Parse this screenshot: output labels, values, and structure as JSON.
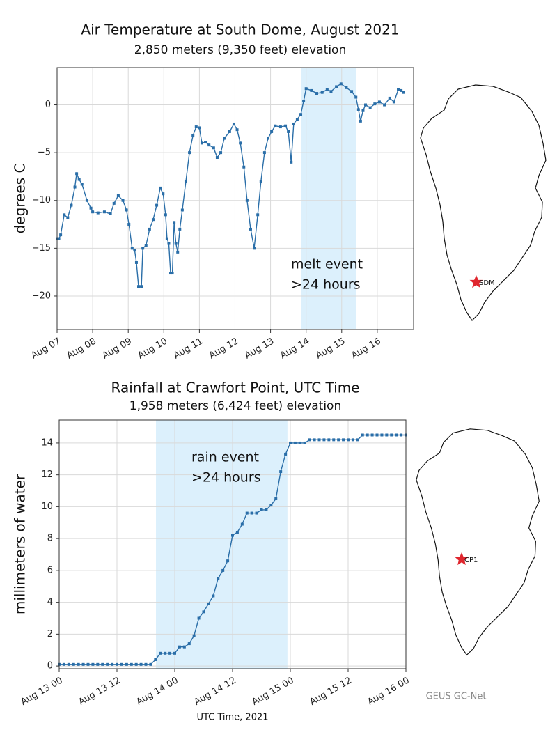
{
  "chart_data": [
    {
      "type": "line",
      "title": "Air Temperature at South Dome, August 2021",
      "subtitle": "2,850 meters (9,350 feet) elevation",
      "y_label": "degrees C",
      "annotation": [
        "melt event",
        ">24 hours"
      ],
      "span": [
        13.85,
        15.4
      ],
      "span_color": "#dcf0fc",
      "grid": true,
      "xlim": [
        7,
        17.02
      ],
      "ylim": [
        -23.5,
        3.9
      ],
      "xticks": [
        {
          "value": 7,
          "label": "Aug 07"
        },
        {
          "value": 8,
          "label": "Aug 08"
        },
        {
          "value": 9,
          "label": "Aug 09"
        },
        {
          "value": 10,
          "label": "Aug 10"
        },
        {
          "value": 11,
          "label": "Aug 11"
        },
        {
          "value": 12,
          "label": "Aug 12"
        },
        {
          "value": 13,
          "label": "Aug 13"
        },
        {
          "value": 14,
          "label": "Aug 14"
        },
        {
          "value": 15,
          "label": "Aug 15"
        },
        {
          "value": 16,
          "label": "Aug 16"
        }
      ],
      "yticks": [
        0,
        {
          "value": -5,
          "label": "−5"
        },
        {
          "value": -10,
          "label": "−10"
        },
        {
          "value": -15,
          "label": "−15"
        },
        {
          "value": -20,
          "label": "−20"
        }
      ],
      "series": [
        {
          "color": "#2a6ea8",
          "x": [
            7.0,
            7.05,
            7.1,
            7.2,
            7.3,
            7.4,
            7.5,
            7.55,
            7.62,
            7.7,
            7.84,
            7.95,
            8.0,
            8.15,
            8.33,
            8.5,
            8.6,
            8.72,
            8.85,
            8.95,
            9.02,
            9.11,
            9.18,
            9.23,
            9.29,
            9.37,
            9.41,
            9.5,
            9.6,
            9.7,
            9.8,
            9.9,
            9.98,
            10.05,
            10.09,
            10.14,
            10.19,
            10.24,
            10.29,
            10.34,
            10.39,
            10.45,
            10.52,
            10.62,
            10.72,
            10.82,
            10.91,
            11.0,
            11.07,
            11.17,
            11.27,
            11.4,
            11.5,
            11.6,
            11.7,
            11.85,
            11.97,
            12.06,
            12.15,
            12.25,
            12.34,
            12.44,
            12.54,
            12.64,
            12.73,
            12.83,
            12.93,
            13.03,
            13.13,
            13.28,
            13.42,
            13.5,
            13.58,
            13.65,
            13.75,
            13.85,
            13.93,
            14.0,
            14.15,
            14.3,
            14.45,
            14.59,
            14.7,
            14.85,
            14.98,
            15.13,
            15.28,
            15.4,
            15.47,
            15.53,
            15.6,
            15.67,
            15.8,
            15.93,
            16.06,
            16.2,
            16.35,
            16.47,
            16.59,
            16.67,
            16.74
          ],
          "values": [
            -14,
            -14,
            -13.6,
            -11.5,
            -11.8,
            -10.5,
            -8.6,
            -7.2,
            -7.8,
            -8.3,
            -10,
            -10.8,
            -11.2,
            -11.3,
            -11.2,
            -11.4,
            -10.3,
            -9.5,
            -10,
            -11,
            -12.5,
            -15,
            -15.2,
            -16.5,
            -19,
            -19,
            -15,
            -14.7,
            -13,
            -12,
            -10.5,
            -8.7,
            -9.3,
            -11.5,
            -14,
            -14.5,
            -17.6,
            -17.6,
            -12.3,
            -14.5,
            -15.4,
            -13,
            -11,
            -8,
            -5,
            -3.2,
            -2.3,
            -2.4,
            -4,
            -3.9,
            -4.2,
            -4.5,
            -5.5,
            -5,
            -3.5,
            -2.8,
            -2,
            -2.6,
            -4,
            -6.5,
            -10,
            -13,
            -15,
            -11.5,
            -8,
            -5,
            -3.5,
            -2.8,
            -2.2,
            -2.3,
            -2.2,
            -2.8,
            -6,
            -2,
            -1.5,
            -1,
            0.4,
            1.7,
            1.5,
            1.2,
            1.3,
            1.6,
            1.4,
            1.9,
            2.2,
            1.8,
            1.4,
            0.8,
            -0.5,
            -1.7,
            -0.6,
            0,
            -0.3,
            0.1,
            0.3,
            0,
            0.7,
            0.3,
            1.6,
            1.5,
            1.3
          ]
        }
      ]
    },
    {
      "type": "line",
      "title": "Rainfall at Crawfort Point, UTC Time",
      "subtitle": "1,958 meters (6,424 feet) elevation",
      "y_label": "millimeters of water",
      "x_label": "UTC Time, 2021",
      "annotation": [
        "rain event",
        ">24 hours"
      ],
      "span": [
        20.1,
        47.4
      ],
      "span_color": "#dcf0fc",
      "grid": true,
      "xlim": [
        0,
        72
      ],
      "ylim": [
        -0.17,
        15.44
      ],
      "xticks": [
        {
          "value": 0,
          "label": "Aug 13 00"
        },
        {
          "value": 12,
          "label": "Aug 13 12"
        },
        {
          "value": 24,
          "label": "Aug 14 00"
        },
        {
          "value": 36,
          "label": "Aug 14 12"
        },
        {
          "value": 48,
          "label": "Aug 15 00"
        },
        {
          "value": 60,
          "label": "Aug 15 12"
        },
        {
          "value": 72,
          "label": "Aug 16 00"
        }
      ],
      "yticks": [
        0,
        2,
        4,
        6,
        8,
        10,
        12,
        14
      ],
      "series": [
        {
          "color": "#2a6ea8",
          "x": [
            0,
            1,
            2,
            3,
            4,
            5,
            6,
            7,
            8,
            9,
            10,
            11,
            12,
            13,
            14,
            15,
            16,
            17,
            18,
            19,
            20,
            21,
            22,
            23,
            24,
            25,
            26,
            27,
            28,
            29,
            30,
            31,
            32,
            33,
            34,
            35,
            36,
            37,
            38,
            39,
            40,
            41,
            42,
            43,
            44,
            45,
            46,
            47,
            48,
            49,
            50,
            51,
            52,
            53,
            54,
            55,
            56,
            57,
            58,
            59,
            60,
            61,
            62,
            63,
            64,
            65,
            66,
            67,
            68,
            69,
            70,
            71,
            72
          ],
          "values": [
            0.1,
            0.1,
            0.1,
            0.1,
            0.1,
            0.1,
            0.1,
            0.1,
            0.1,
            0.1,
            0.1,
            0.1,
            0.1,
            0.1,
            0.1,
            0.1,
            0.1,
            0.1,
            0.1,
            0.1,
            0.4,
            0.8,
            0.8,
            0.8,
            0.8,
            1.2,
            1.2,
            1.4,
            1.9,
            3.0,
            3.4,
            3.9,
            4.4,
            5.5,
            6.0,
            6.6,
            8.2,
            8.4,
            8.9,
            9.6,
            9.6,
            9.6,
            9.8,
            9.8,
            10.1,
            10.5,
            12.2,
            13.3,
            14.0,
            14.0,
            14.0,
            14.0,
            14.2,
            14.2,
            14.2,
            14.2,
            14.2,
            14.2,
            14.2,
            14.2,
            14.2,
            14.2,
            14.2,
            14.5,
            14.5,
            14.5,
            14.5,
            14.5,
            14.5,
            14.5,
            14.5,
            14.5,
            14.5
          ]
        }
      ]
    }
  ],
  "maps": [
    {
      "station": "SDM"
    },
    {
      "station": "CP1"
    }
  ],
  "credit": "GEUS GC-Net"
}
